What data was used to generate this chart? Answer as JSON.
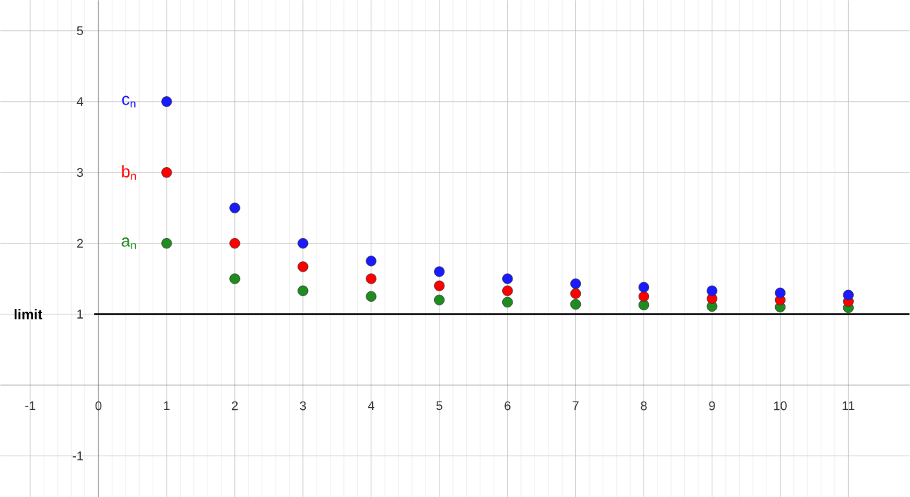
{
  "chart_data": {
    "type": "scatter",
    "x": [
      1,
      2,
      3,
      4,
      5,
      6,
      7,
      8,
      9,
      10,
      11
    ],
    "series": [
      {
        "name": "a$_{n}$",
        "color": "#1e8c1e",
        "values": [
          2,
          1.5,
          1.33,
          1.25,
          1.2,
          1.17,
          1.14,
          1.13,
          1.11,
          1.1,
          1.09
        ]
      },
      {
        "name": "b$_{n}$",
        "color": "#ff0000",
        "values": [
          3,
          2,
          1.67,
          1.5,
          1.4,
          1.33,
          1.29,
          1.25,
          1.22,
          1.2,
          1.18
        ]
      },
      {
        "name": "c$_{n}$",
        "color": "#1a1aff",
        "values": [
          4,
          2.5,
          2,
          1.75,
          1.6,
          1.5,
          1.43,
          1.38,
          1.33,
          1.3,
          1.27
        ]
      }
    ],
    "ref_lines": [
      {
        "axis": "y",
        "value": 1,
        "label": "limit",
        "color": "#000000"
      }
    ],
    "xlim": [
      -1.44,
      11.9
    ],
    "ylim": [
      -1.58,
      5.43
    ],
    "xticks": [
      -1,
      0,
      1,
      2,
      3,
      4,
      5,
      6,
      7,
      8,
      9,
      10,
      11
    ],
    "yticks": [
      -1,
      1,
      2,
      3,
      4,
      5
    ],
    "grid": true,
    "marker": "circle",
    "legend": false
  }
}
